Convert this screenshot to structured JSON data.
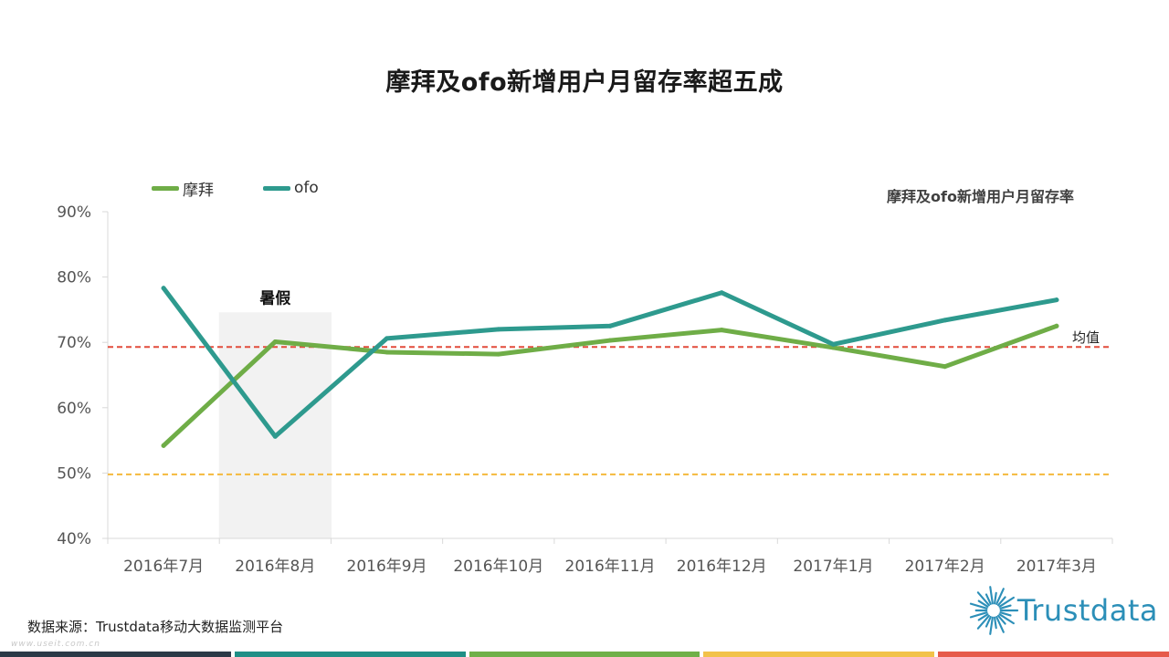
{
  "title": "摩拜及ofo新增用户月留存率超五成",
  "source_text": "数据来源：Trustdata移动大数据监测平台",
  "watermark": "www.useit.com.cn",
  "logo": {
    "text": "Trustdata",
    "icon": "starburst-icon",
    "color": "#2c8fb8"
  },
  "footer_colors": [
    "#2b3a47",
    "#1f8f86",
    "#6fb048",
    "#f2c24a",
    "#e65a4a"
  ],
  "chart_data": {
    "type": "line",
    "title": "摩拜及ofo新增用户月留存率",
    "categories": [
      "2016年7月",
      "2016年8月",
      "2016年9月",
      "2016年10月",
      "2016年11月",
      "2016年12月",
      "2017年1月",
      "2017年2月",
      "2017年3月"
    ],
    "ylim": [
      40,
      90
    ],
    "yticks": [
      40,
      50,
      60,
      70,
      80,
      90
    ],
    "ytick_labels": [
      "40%",
      "50%",
      "60%",
      "70%",
      "80%",
      "90%"
    ],
    "legend_position": "top-left",
    "series": [
      {
        "name": "摩拜",
        "color": "#6fad47",
        "values": [
          54.2,
          70.1,
          68.5,
          68.2,
          70.3,
          71.9,
          69.2,
          66.3,
          72.5
        ]
      },
      {
        "name": "ofo",
        "color": "#2e9a8e",
        "values": [
          78.3,
          55.6,
          70.6,
          72.0,
          72.5,
          77.6,
          69.7,
          73.4,
          76.5
        ]
      }
    ],
    "reference_lines": [
      {
        "value": 69.3,
        "label": "均值",
        "color": "#e24c3c"
      },
      {
        "value": 49.8,
        "label": "",
        "color": "#f5b93c"
      }
    ],
    "highlight": {
      "category": "2016年8月",
      "label": "暑假",
      "color": "#f2f2f2"
    }
  }
}
